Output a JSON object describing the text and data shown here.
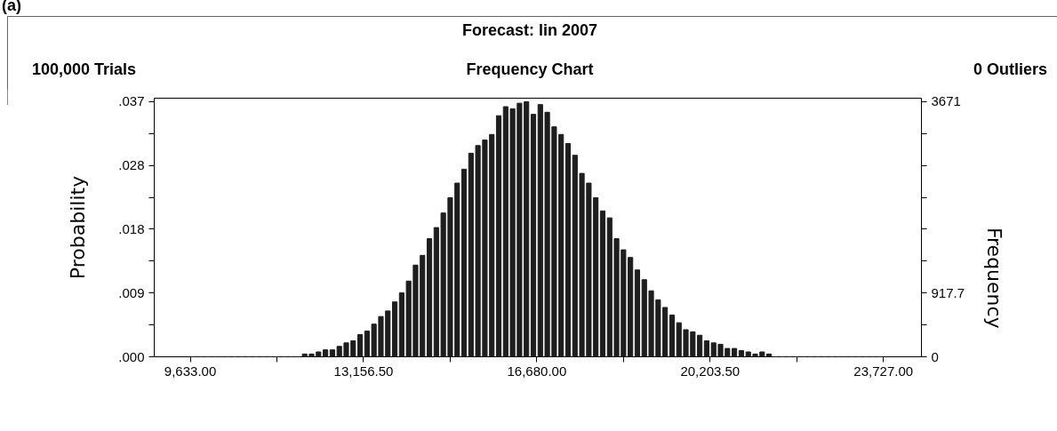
{
  "chart_data": {
    "type": "histogram",
    "title": "Forecast: lin 2007",
    "subtitle": "Frequency Chart",
    "ylabel": "Probability",
    "y2label": "Frequency",
    "annotations": [
      "(a)",
      "100,000 Trials",
      "0 Outliers"
    ],
    "bins": [
      9633.0,
      9773.94,
      9914.88,
      10055.82,
      10196.76,
      10337.7,
      10478.64,
      10619.58,
      10760.52,
      10901.46,
      11042.4,
      11183.34,
      11324.28,
      11465.22,
      11606.16,
      11747.1,
      11888.04,
      12028.98,
      12169.92,
      12310.86,
      12451.8,
      12592.74,
      12733.68,
      12874.62,
      13015.56,
      13156.5,
      13297.44,
      13438.38,
      13579.32,
      13720.26,
      13861.2,
      14002.14,
      14143.08,
      14284.02,
      14424.96,
      14565.9,
      14706.84,
      14847.78,
      14988.72,
      15129.66,
      15270.6,
      15411.54,
      15552.48,
      15693.42,
      15834.36,
      15975.3,
      16116.24,
      16257.18,
      16398.12,
      16539.06,
      16680.0,
      16820.94,
      16961.88,
      17102.82,
      17243.76,
      17384.7,
      17525.64,
      17666.58,
      17807.52,
      17948.46,
      18089.4,
      18230.34,
      18371.28,
      18512.22,
      18653.16,
      18794.1,
      18935.04,
      19075.98,
      19216.92,
      19357.86,
      19498.8,
      19639.74,
      19780.68,
      19921.62,
      20062.56,
      20203.5,
      20344.44,
      20485.38,
      20626.32,
      20767.26,
      20908.2,
      21049.14,
      21190.08,
      21331.02,
      21471.96,
      21612.9,
      21753.84,
      21894.78,
      22035.72,
      22176.66,
      22317.6,
      22458.54,
      22599.48,
      22740.42,
      22881.36,
      23022.3,
      23163.24,
      23304.18,
      23445.12,
      23586.06,
      23727.0
    ],
    "series": [
      {
        "axis": "y2",
        "color": "#1e1e1e",
        "values": [
          0,
          0,
          0,
          0,
          0,
          0,
          0,
          0,
          0,
          0,
          0,
          0,
          0,
          0,
          0,
          0,
          40,
          40,
          70,
          100,
          100,
          150,
          200,
          230,
          320,
          370,
          470,
          580,
          660,
          790,
          920,
          1090,
          1320,
          1460,
          1700,
          1860,
          2070,
          2290,
          2500,
          2700,
          2930,
          3040,
          3120,
          3200,
          3470,
          3600,
          3570,
          3650,
          3670,
          3490,
          3630,
          3520,
          3310,
          3200,
          3070,
          2900,
          2640,
          2500,
          2290,
          2100,
          2000,
          1700,
          1540,
          1430,
          1250,
          1110,
          950,
          820,
          710,
          600,
          490,
          390,
          360,
          310,
          230,
          200,
          180,
          120,
          120,
          90,
          70,
          40,
          70,
          40,
          0,
          0,
          0,
          0,
          0,
          0,
          0,
          0,
          0,
          0,
          0,
          0,
          0,
          0,
          0,
          0
        ]
      }
    ],
    "xlim": [
      8900,
      24500
    ],
    "xticks": [
      {
        "value": 9633,
        "label": "9,633.00"
      },
      {
        "value": 11394.75,
        "label": null
      },
      {
        "value": 13156.5,
        "label": "13,156.50"
      },
      {
        "value": 14918.25,
        "label": null
      },
      {
        "value": 16680,
        "label": "16,680.00"
      },
      {
        "value": 18441.75,
        "label": null
      },
      {
        "value": 20203.5,
        "label": "20,203.50"
      },
      {
        "value": 21965.25,
        "label": null
      },
      {
        "value": 23727,
        "label": "23,727.00"
      }
    ],
    "ylim": [
      0,
      0.0372
    ],
    "yticks": [
      {
        "value": 0,
        "label": ".000"
      },
      {
        "value": 0.004589,
        "label": null
      },
      {
        "value": 0.009178,
        "label": ".009"
      },
      {
        "value": 0.013766,
        "label": null
      },
      {
        "value": 0.018355,
        "label": ".018"
      },
      {
        "value": 0.022944,
        "label": null
      },
      {
        "value": 0.027533,
        "label": ".028"
      },
      {
        "value": 0.032121,
        "label": null
      },
      {
        "value": 0.03671,
        "label": ".037"
      }
    ],
    "y2lim": [
      0,
      3722
    ],
    "y2ticks": [
      0,
      {
        "value": 458.9,
        "label": null
      },
      {
        "value": 917.7,
        "label": "917.7"
      },
      {
        "value": 1376.6,
        "label": null
      },
      {
        "value": 1835.5,
        "label": null
      },
      {
        "value": 2294.4,
        "label": null
      },
      {
        "value": 2753.3,
        "label": null
      },
      {
        "value": 3212.1,
        "label": null
      },
      3671
    ]
  }
}
